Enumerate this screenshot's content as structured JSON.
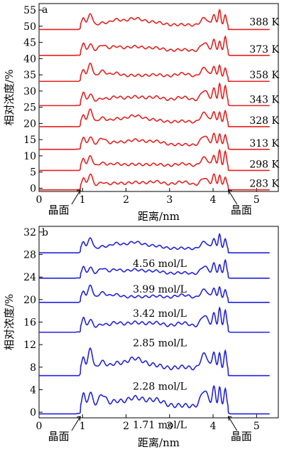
{
  "chart_data": [
    {
      "panel_label": "a",
      "type": "line",
      "xlabel": "距离/nm",
      "ylabel": "相对浓度/%",
      "xlim": [
        0,
        5.5
      ],
      "ylim": [
        -1,
        57
      ],
      "xticks": [
        0,
        1,
        2,
        3,
        4,
        5
      ],
      "yticks": [
        0,
        5,
        10,
        15,
        20,
        25,
        30,
        35,
        40,
        45,
        50,
        55
      ],
      "color": "#e8201e",
      "interface_labels": [
        "晶面",
        "晶面"
      ],
      "series": [
        {
          "name": "388 K",
          "offset": 49,
          "amp": 1.0
        },
        {
          "name": "373 K",
          "offset": 41,
          "amp": 1.0
        },
        {
          "name": "358 K",
          "offset": 33,
          "amp": 1.0
        },
        {
          "name": "343 K",
          "offset": 25.5,
          "amp": 1.1
        },
        {
          "name": "328 K",
          "offset": 19,
          "amp": 1.0
        },
        {
          "name": "313 K",
          "offset": 12,
          "amp": 1.0
        },
        {
          "name": "298 K",
          "offset": 5.5,
          "amp": 1.0
        },
        {
          "name": "283 K",
          "offset": -0.5,
          "amp": 1.0
        }
      ]
    },
    {
      "panel_label": "b",
      "type": "line",
      "xlabel": "距离/nm",
      "ylabel": "相对浓度/%",
      "xlim": [
        0,
        5.5
      ],
      "ylim": [
        -1,
        33
      ],
      "xticks": [
        0,
        1,
        2,
        3,
        4,
        5
      ],
      "yticks": [
        0,
        4,
        8,
        12,
        16,
        20,
        24,
        28,
        32
      ],
      "color": "#2222e0",
      "interface_labels": [
        "晶面",
        "晶面"
      ],
      "series": [
        {
          "name": "4.56 mol/L",
          "offset": 28.3,
          "amp": 0.55
        },
        {
          "name": "3.99 mol/L",
          "offset": 23.8,
          "amp": 0.55
        },
        {
          "name": "3.42 mol/L",
          "offset": 19.5,
          "amp": 0.55
        },
        {
          "name": "2.85 mol/L",
          "offset": 14.2,
          "amp": 0.7
        },
        {
          "name": "2.28 mol/L",
          "offset": 6.5,
          "amp": 0.9
        },
        {
          "name": "1.71 mol/L",
          "offset": -0.3,
          "amp": 1.0
        }
      ]
    }
  ]
}
